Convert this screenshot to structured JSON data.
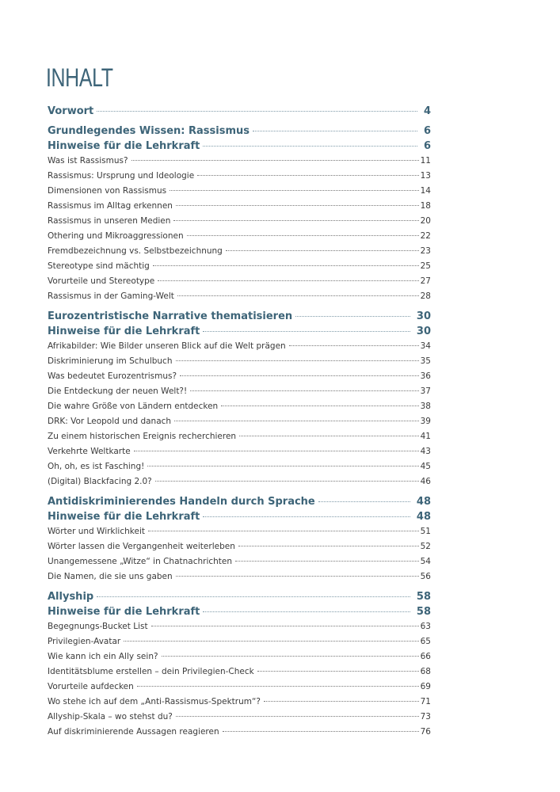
{
  "title": "INHALT",
  "entries": [
    {
      "label": "Vorwort",
      "page": "4",
      "level": "section"
    },
    {
      "label": "Grundlegendes Wissen: Rassismus",
      "page": "6",
      "level": "section"
    },
    {
      "label": "Hinweise für die Lehrkraft",
      "page": "6",
      "level": "heading"
    },
    {
      "label": "Was ist Rassismus?",
      "page": "11",
      "level": "item"
    },
    {
      "label": "Rassismus: Ursprung und Ideologie",
      "page": "13",
      "level": "item"
    },
    {
      "label": "Dimensionen von Rassismus",
      "page": "14",
      "level": "item"
    },
    {
      "label": "Rassismus im Alltag erkennen",
      "page": "18",
      "level": "item"
    },
    {
      "label": "Rassismus in unseren Medien",
      "page": "20",
      "level": "item"
    },
    {
      "label": "Othering und Mikroaggressionen",
      "page": "22",
      "level": "item"
    },
    {
      "label": "Fremdbezeichnung vs. Selbstbezeichnung",
      "page": "23",
      "level": "item"
    },
    {
      "label": "Stereotype sind mächtig",
      "page": "25",
      "level": "item"
    },
    {
      "label": "Vorurteile und Stereotype",
      "page": "27",
      "level": "item"
    },
    {
      "label": "Rassismus in der Gaming-Welt",
      "page": "28",
      "level": "item"
    },
    {
      "label": "Eurozentristische Narrative thematisieren",
      "page": "30",
      "level": "section"
    },
    {
      "label": "Hinweise für die Lehrkraft",
      "page": "30",
      "level": "heading"
    },
    {
      "label": "Afrikabilder: Wie Bilder unseren Blick auf die Welt prägen",
      "page": "34",
      "level": "item"
    },
    {
      "label": "Diskriminierung im Schulbuch",
      "page": "35",
      "level": "item"
    },
    {
      "label": "Was bedeutet Eurozentrismus?",
      "page": "36",
      "level": "item"
    },
    {
      "label": "Die Entdeckung der neuen Welt?!",
      "page": "37",
      "level": "item"
    },
    {
      "label": "Die wahre Größe von Ländern entdecken",
      "page": "38",
      "level": "item"
    },
    {
      "label": "DRK: Vor Leopold und danach",
      "page": "39",
      "level": "item"
    },
    {
      "label": "Zu einem historischen Ereignis recherchieren",
      "page": "41",
      "level": "item"
    },
    {
      "label": "Verkehrte Weltkarte",
      "page": "43",
      "level": "item"
    },
    {
      "label": "Oh, oh, es ist Fasching!",
      "page": "45",
      "level": "item"
    },
    {
      "label": "(Digital) Blackfacing 2.0?",
      "page": "46",
      "level": "item"
    },
    {
      "label": "Antidiskriminierendes Handeln durch Sprache",
      "page": "48",
      "level": "section"
    },
    {
      "label": "Hinweise für die Lehrkraft",
      "page": "48",
      "level": "heading"
    },
    {
      "label": "Wörter und Wirklichkeit",
      "page": "51",
      "level": "item"
    },
    {
      "label": "Wörter lassen die Vergangenheit weiterleben",
      "page": "52",
      "level": "item"
    },
    {
      "label": "Unangemessene „Witze“ in Chatnachrichten",
      "page": "54",
      "level": "item"
    },
    {
      "label": "Die Namen, die sie uns gaben",
      "page": "56",
      "level": "item"
    },
    {
      "label": "Allyship",
      "page": "58",
      "level": "section"
    },
    {
      "label": "Hinweise für die Lehrkraft",
      "page": "58",
      "level": "heading"
    },
    {
      "label": "Begegnungs-Bucket List",
      "page": "63",
      "level": "item"
    },
    {
      "label": "Privilegien-Avatar",
      "page": "65",
      "level": "item"
    },
    {
      "label": "Wie kann ich ein Ally sein?",
      "page": "66",
      "level": "item"
    },
    {
      "label": "Identitätsblume erstellen – dein Privilegien-Check",
      "page": "68",
      "level": "item"
    },
    {
      "label": "Vorurteile aufdecken",
      "page": "69",
      "level": "item"
    },
    {
      "label": "Wo stehe ich auf dem „Anti-Rassismus-Spektrum“?",
      "page": "71",
      "level": "item"
    },
    {
      "label": "Allyship-Skala – wo stehst du?",
      "page": "73",
      "level": "item"
    },
    {
      "label": "Auf diskriminierende Aussagen reagieren",
      "page": "76",
      "level": "item"
    }
  ],
  "colors": {
    "heading": "#3d6478",
    "text": "#3a3a3a"
  }
}
